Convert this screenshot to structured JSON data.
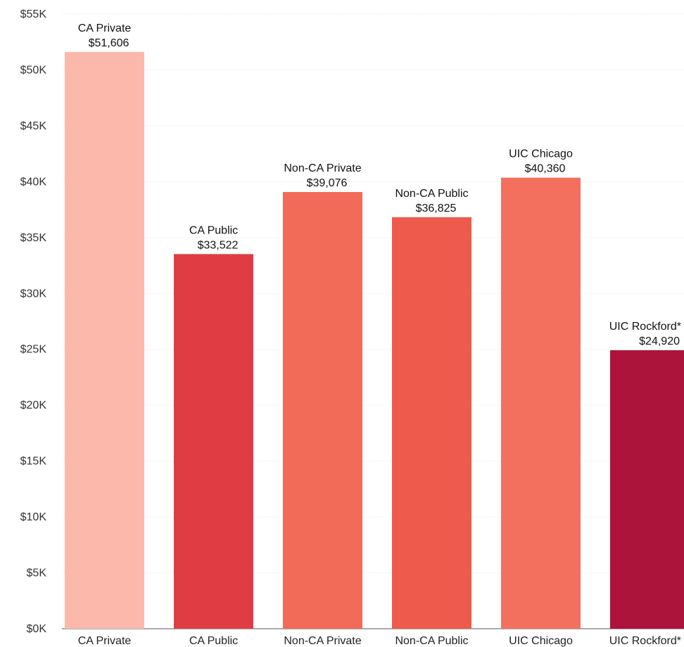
{
  "chart_data": {
    "type": "bar",
    "title": "",
    "xlabel": "",
    "ylabel": "",
    "categories": [
      "CA Private",
      "CA Public",
      "Non-CA Private",
      "Non-CA Public",
      "UIC Chicago",
      "UIC Rockford*"
    ],
    "values": [
      51606,
      33522,
      39076,
      36825,
      40360,
      24920
    ],
    "data_labels": [
      "$51,606",
      "$33,522",
      "$39,076",
      "$36,825",
      "$40,360",
      "$24,920"
    ],
    "colors": [
      "#fcb8ab",
      "#e03c44",
      "#f26a58",
      "#ee5a4c",
      "#f3705f",
      "#ad143b"
    ],
    "ylim": [
      0,
      55000
    ],
    "yticks": [
      0,
      5000,
      10000,
      15000,
      20000,
      25000,
      30000,
      35000,
      40000,
      45000,
      50000,
      55000
    ],
    "ytick_labels": [
      "$0K",
      "$5K",
      "$10K",
      "$15K",
      "$20K",
      "$25K",
      "$30K",
      "$35K",
      "$40K",
      "$45K",
      "$50K",
      "$55K"
    ],
    "grid": true,
    "legend": "none"
  }
}
